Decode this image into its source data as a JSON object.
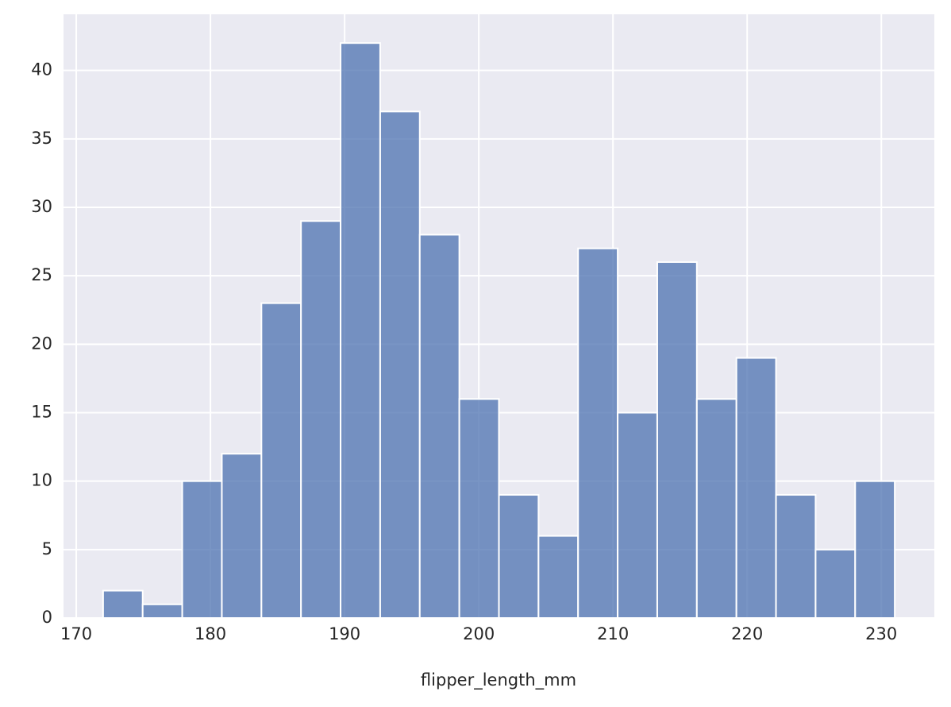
{
  "chart_data": {
    "type": "histogram",
    "xlabel": "flipper_length_mm",
    "bins": [
      172,
      174.95,
      177.9,
      180.85,
      183.8,
      186.75,
      189.7,
      192.65,
      195.6,
      198.55,
      201.5,
      204.45,
      207.4,
      210.35,
      213.3,
      216.25,
      219.2,
      222.15,
      225.1,
      228.05,
      231
    ],
    "values": [
      2,
      1,
      10,
      12,
      23,
      29,
      42,
      37,
      28,
      16,
      9,
      6,
      27,
      15,
      26,
      16,
      19,
      9,
      5,
      10
    ],
    "color": "#4c72b0",
    "xlim": [
      169.05,
      233.95
    ],
    "xticks": [
      170,
      180,
      190,
      200,
      210,
      220,
      230
    ],
    "ylim": [
      0,
      44.1
    ],
    "yticks": [
      0,
      5,
      10,
      15,
      20,
      25,
      30,
      35,
      40
    ],
    "grid": true
  }
}
